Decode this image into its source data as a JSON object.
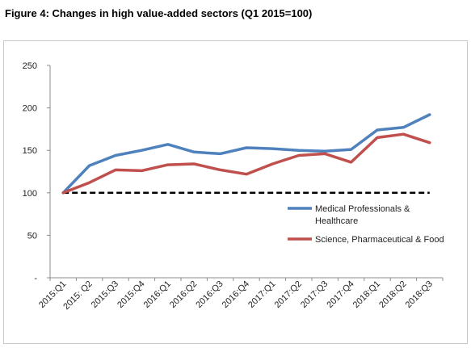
{
  "figure": {
    "title": "Figure 4: Changes in high value-added sectors (Q1 2015=100)"
  },
  "chart_data": {
    "type": "line",
    "title": "Figure 4: Changes in high value-added sectors (Q1 2015=100)",
    "categories": [
      "2015:Q1",
      "2015: Q2",
      "2015:Q3",
      "2015:Q4",
      "2016:Q1",
      "2016:Q2",
      "2016:Q3",
      "2016:Q4",
      "2017:Q1",
      "2017:Q2",
      "2017:Q3",
      "2017:Q4",
      "2018:Q1",
      "2018:Q2",
      "2018:Q3"
    ],
    "y_ticks": [
      0,
      50,
      100,
      150,
      200,
      250
    ],
    "y_tick_labels": [
      "-",
      "50",
      "100",
      "150",
      "200",
      "250"
    ],
    "ylim": [
      0,
      250
    ],
    "grid": false,
    "legend_position": "right",
    "series": [
      {
        "name": "Medical Professionals & Healthcare",
        "legend_lines": [
          "Medical Professionals &",
          "Healthcare"
        ],
        "color": "#4f81bd",
        "values": [
          100,
          132,
          144,
          150,
          157,
          148,
          146,
          153,
          152,
          150,
          149,
          151,
          174,
          177,
          192
        ]
      },
      {
        "name": "Science, Pharmaceutical & Food",
        "legend_lines": [
          "Science, Pharmaceutical & Food"
        ],
        "color": "#c0504d",
        "values": [
          100,
          112,
          127,
          126,
          133,
          134,
          127,
          122,
          134,
          144,
          146,
          136,
          165,
          169,
          159
        ]
      }
    ],
    "reference_line": {
      "value": 100,
      "color": "#000000",
      "style": "dashed"
    }
  }
}
